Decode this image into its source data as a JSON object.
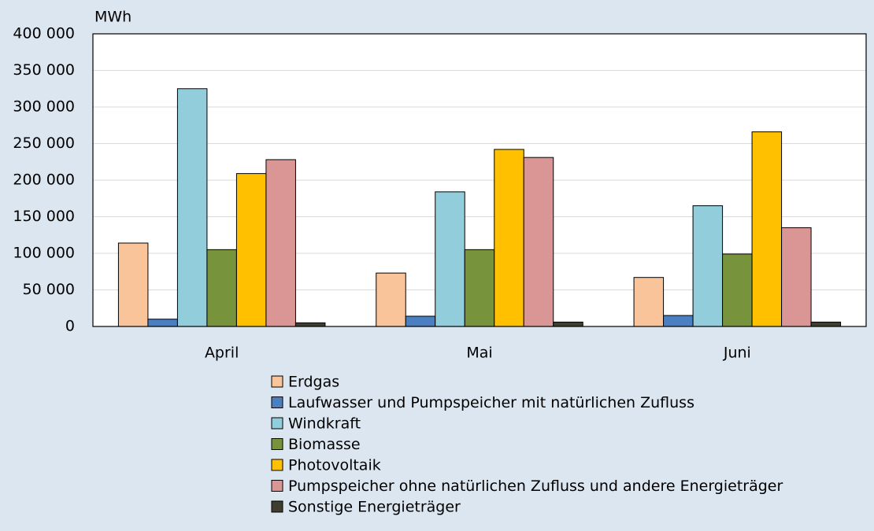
{
  "chart_data": {
    "type": "bar",
    "y_unit": "MWh",
    "categories": [
      "April",
      "Mai",
      "Juni"
    ],
    "series": [
      {
        "name": "Erdgas",
        "color": "#f9c49a",
        "values": [
          114000,
          73000,
          67000
        ]
      },
      {
        "name": "Laufwasser und Pumpspeicher mit natürlichen Zufluss",
        "color": "#4a7fc1",
        "values": [
          10000,
          14000,
          15000
        ]
      },
      {
        "name": "Windkraft",
        "color": "#92cddc",
        "values": [
          325000,
          184000,
          165000
        ]
      },
      {
        "name": "Biomasse",
        "color": "#77933c",
        "values": [
          105000,
          105000,
          99000
        ]
      },
      {
        "name": "Photovoltaik",
        "color": "#ffc000",
        "values": [
          209000,
          242000,
          266000
        ]
      },
      {
        "name": "Pumpspeicher ohne natürlichen Zufluss und andere Energieträger",
        "color": "#d99694",
        "values": [
          228000,
          231000,
          135000
        ]
      },
      {
        "name": "Sonstige Energieträger",
        "color": "#3f3f2f",
        "values": [
          5000,
          6000,
          6000
        ]
      }
    ],
    "ylim": [
      0,
      400000
    ],
    "yticks": [
      0,
      {
        "value": 50000,
        "label": "50 000"
      },
      {
        "value": 100000,
        "label": "100 000"
      },
      {
        "value": 150000,
        "label": "150 000"
      },
      {
        "value": 200000,
        "label": "200 000"
      },
      {
        "value": 250000,
        "label": "250 000"
      },
      {
        "value": 300000,
        "label": "300 000"
      },
      {
        "value": 350000,
        "label": "350 000"
      },
      {
        "value": 400000,
        "label": "400 000"
      }
    ],
    "grid": true
  }
}
